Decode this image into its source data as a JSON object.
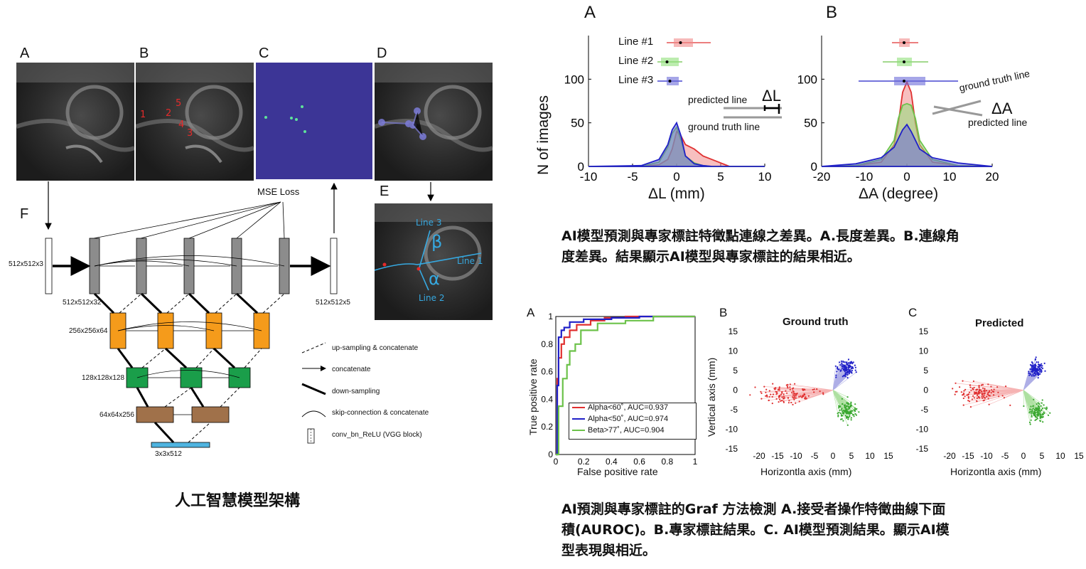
{
  "panels_left": {
    "a": "A",
    "b": "B",
    "c": "C",
    "d": "D",
    "e": "E",
    "f": "F",
    "landmarks": [
      "1",
      "2",
      "3",
      "4",
      "5"
    ],
    "mse_loss": "MSE Loss",
    "e_labels": {
      "line1": "Line 1",
      "line2": "Line 2",
      "line3": "Line 3",
      "alpha": "α",
      "beta": "β"
    },
    "sizes": {
      "input": "512x512x3",
      "l1": "512x512x32",
      "l2": "256x256x64",
      "l3": "128x128x128",
      "l4": "64x64x256",
      "l5": "3x3x512",
      "output": "512x512x5"
    },
    "legend": {
      "up": "up-sampling & concatenate",
      "concat": "concatenate",
      "down": "down-sampling",
      "skip": "skip-connection & concatenate",
      "conv": "conv_bn_ReLU (VGG block)"
    },
    "caption": "人工智慧模型架構"
  },
  "top_right": {
    "a": "A",
    "b": "B",
    "ylabel": "N of images",
    "box_legend": [
      "Line #1",
      "Line #2",
      "Line #3"
    ],
    "a_xlabel": "ΔL (mm)",
    "b_xlabel": "ΔA (degree)",
    "a_annot": {
      "predicted": "predicted line",
      "gt": "ground truth line",
      "delta": "ΔL"
    },
    "b_annot": {
      "predicted": "predicted line",
      "gt": "ground truth line",
      "delta": "ΔA"
    },
    "caption_line1": "AI模型預測與專家標註特徵點連線之差異。A.長度差異。B.連線角",
    "caption_line2": "度差異。結果顯示AI模型與專家標註的結果相近。"
  },
  "bottom_right": {
    "a": "A",
    "b": "B",
    "c": "C",
    "roc_ylabel": "True positive rate",
    "roc_xlabel": "False positive rate",
    "roc_legend": [
      "Alpha<60˚, AUC=0.937",
      "Alpha<50˚, AUC=0.974",
      "Beta>77˚,   AUC=0.904"
    ],
    "b_title": "Ground truth",
    "c_title": "Predicted",
    "scatter_ylabel": "Vertical axis (mm)",
    "scatter_xlabel": "Horizontla axis (mm)",
    "caption_line1": "AI預測與專家標註的Graf 方法檢測 A.接受者操作特徵曲線下面",
    "caption_line2": "積(AUROC)。B.專家標註結果。C. AI模型預測結果。顯示AI模",
    "caption_line3": "型表現與相近。"
  },
  "colors": {
    "red": "#e03030",
    "green": "#6cc24a",
    "blue": "#2020c8",
    "gray_block": "#8c8c8c",
    "orange": "#f59b1b",
    "green_block": "#1a9e4a",
    "brown": "#a0714a",
    "cyan": "#4fb4e0",
    "heat": "#3c3596"
  },
  "chart_data": [
    {
      "type": "area",
      "panel": "A",
      "xlabel": "ΔL (mm)",
      "ylabel": "N of images",
      "xlim": [
        -10,
        10
      ],
      "ylim": [
        0,
        150
      ],
      "x_ticks": [
        -10,
        -5,
        0,
        5,
        10
      ],
      "y_ticks": [
        0,
        50,
        100
      ],
      "x": [
        -10,
        -4,
        -2,
        -1,
        -0.5,
        0,
        0.5,
        1,
        2,
        3,
        4,
        5,
        6,
        10
      ],
      "series": [
        {
          "name": "Line #1",
          "values": [
            0,
            0,
            2,
            8,
            20,
            40,
            35,
            25,
            20,
            12,
            8,
            4,
            0,
            0
          ]
        },
        {
          "name": "Line #2",
          "values": [
            0,
            0,
            5,
            22,
            38,
            45,
            30,
            12,
            4,
            1,
            0,
            0,
            0,
            0
          ]
        },
        {
          "name": "Line #3",
          "values": [
            0,
            1,
            8,
            25,
            42,
            50,
            35,
            12,
            3,
            1,
            0,
            0,
            0,
            0
          ]
        }
      ]
    },
    {
      "type": "area",
      "panel": "B",
      "xlabel": "ΔA (degree)",
      "xlim": [
        -20,
        20
      ],
      "ylim": [
        0,
        150
      ],
      "x_ticks": [
        -20,
        -10,
        0,
        10,
        20
      ],
      "y_ticks": [
        0,
        50,
        100
      ],
      "x": [
        -20,
        -12,
        -6,
        -3,
        -2,
        -1,
        0,
        1,
        2,
        3,
        6,
        12,
        20
      ],
      "series": [
        {
          "name": "Line #1",
          "values": [
            0,
            1,
            5,
            25,
            50,
            85,
            97,
            85,
            50,
            25,
            5,
            1,
            0
          ]
        },
        {
          "name": "Line #2",
          "values": [
            0,
            1,
            8,
            30,
            55,
            70,
            72,
            70,
            55,
            30,
            8,
            1,
            0
          ]
        },
        {
          "name": "Line #3",
          "values": [
            0,
            3,
            10,
            22,
            32,
            42,
            48,
            40,
            30,
            20,
            10,
            4,
            0
          ]
        }
      ]
    },
    {
      "type": "line",
      "panel": "ROC",
      "xlabel": "False positive rate",
      "ylabel": "True positive rate",
      "xlim": [
        0,
        1
      ],
      "ylim": [
        0,
        1
      ],
      "x_ticks": [
        0,
        0.2,
        0.4,
        0.6,
        0.8,
        1
      ],
      "y_ticks": [
        0,
        0.2,
        0.4,
        0.6,
        0.8,
        1
      ],
      "series": [
        {
          "name": "Alpha<60˚, AUC=0.937",
          "x": [
            0,
            0.01,
            0.02,
            0.04,
            0.06,
            0.1,
            0.15,
            0.25,
            0.35,
            0.5,
            1
          ],
          "values": [
            0,
            0.55,
            0.7,
            0.8,
            0.85,
            0.9,
            0.94,
            0.97,
            0.99,
            1,
            1
          ]
        },
        {
          "name": "Alpha<50˚, AUC=0.974",
          "x": [
            0,
            0.01,
            0.02,
            0.04,
            0.06,
            0.1,
            0.2,
            0.4,
            0.6,
            1
          ],
          "values": [
            0,
            0.5,
            0.85,
            0.9,
            0.92,
            0.96,
            0.98,
            0.99,
            1,
            1
          ]
        },
        {
          "name": "Beta>77˚,   AUC=0.904",
          "x": [
            0,
            0.02,
            0.05,
            0.08,
            0.1,
            0.14,
            0.18,
            0.3,
            0.5,
            0.7,
            1
          ],
          "values": [
            0,
            0.35,
            0.55,
            0.65,
            0.75,
            0.8,
            0.9,
            0.95,
            0.97,
            1,
            1
          ]
        }
      ]
    },
    {
      "type": "scatter",
      "panel": "Ground truth",
      "xlabel": "Horizontla axis (mm)",
      "ylabel": "Vertical axis (mm)",
      "xlim": [
        -25,
        15
      ],
      "ylim": [
        -15,
        15
      ],
      "x_ticks": [
        -20,
        -15,
        -10,
        -5,
        0,
        5,
        10,
        15
      ],
      "y_ticks": [
        -15,
        -10,
        -5,
        0,
        5,
        10,
        15
      ],
      "clusters": [
        {
          "color": "red",
          "cx": -13,
          "cy": -1,
          "sx": 4,
          "sy": 1.2
        },
        {
          "color": "blue",
          "cx": 3.5,
          "cy": 5.5,
          "sx": 1.1,
          "sy": 1.1
        },
        {
          "color": "green",
          "cx": 4,
          "cy": -5.5,
          "sx": 1.2,
          "sy": 1.3
        }
      ]
    },
    {
      "type": "scatter",
      "panel": "Predicted",
      "xlabel": "Horizontla axis (mm)",
      "xlim": [
        -25,
        15
      ],
      "ylim": [
        -15,
        15
      ],
      "x_ticks": [
        -20,
        -15,
        -10,
        -5,
        0,
        5,
        10,
        15
      ],
      "y_ticks": [
        -15,
        -10,
        -5,
        0,
        5,
        10,
        15
      ],
      "clusters": [
        {
          "color": "red",
          "cx": -12,
          "cy": -1,
          "sx": 3,
          "sy": 1.2
        },
        {
          "color": "blue",
          "cx": 3.5,
          "cy": 5.5,
          "sx": 1,
          "sy": 1
        },
        {
          "color": "green",
          "cx": 3.8,
          "cy": -5.5,
          "sx": 1.2,
          "sy": 1.2
        }
      ]
    }
  ]
}
